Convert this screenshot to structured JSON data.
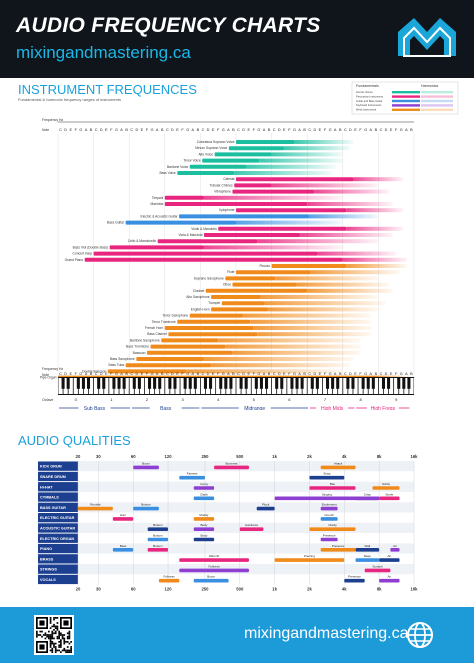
{
  "header": {
    "title": "AUDIO FREQUENCY CHARTS",
    "website": "mixingandmastering.ca"
  },
  "footer": {
    "website": "mixingandmastering.ca"
  },
  "colors": {
    "header_bg": "#10151c",
    "accent_blue": "#1aa1dc",
    "footer_bg": "#1d9bd8",
    "teal": "#1bbfa0",
    "pink": "#e9267f",
    "purple": "#8e3fd1",
    "blue": "#3a8fe0",
    "orange": "#f08a1a",
    "navy": "#1d3f8f"
  },
  "icons": [
    "logo-m-mountain",
    "qr-code",
    "globe-icon"
  ],
  "chart_data": [
    {
      "type": "bar",
      "title": "INSTRUMENT FREQUENCES",
      "subtitle": "Fundamental & harmonic frequency ranges of instruments",
      "legend": {
        "position": "top-right",
        "keys": [
          "Fundamentals",
          "Harmonics"
        ],
        "families": [
          "Human Voices",
          "Percussion Instruments",
          "Guitar and Bass Guitar",
          "Keyboard Instruments",
          "Wind Instruments"
        ]
      },
      "axis_label_frequency": "Frequency Hz",
      "axis_label_note": "Note",
      "note_letters": [
        "C",
        "D",
        "E",
        "F",
        "G",
        "A",
        "B"
      ],
      "octaves": [
        0,
        1,
        2,
        3,
        4,
        5,
        6,
        7,
        8,
        9
      ],
      "octave_label": "Octave",
      "bands": [
        {
          "name": "Sub Bass",
          "x0": 0.0,
          "x1": 2.05
        },
        {
          "name": "Bass",
          "x0": 2.05,
          "x1": 4.0
        },
        {
          "name": "Midrange",
          "x0": 4.0,
          "x1": 7.05
        },
        {
          "name": "High Mids",
          "x0": 7.05,
          "x1": 8.35
        },
        {
          "name": "High Freqs",
          "x0": 8.35,
          "x1": 9.9
        }
      ],
      "series_note": "Bar start and end values are in octave units (C0 = 0).",
      "instruments": [
        {
          "name": "Coloratura Soprano Voice",
          "family": "voice",
          "start": 5.0,
          "fund_end": 6.65,
          "harm_end": 8.3
        },
        {
          "name": "Mezzo Soprano Voice",
          "family": "voice",
          "start": 4.8,
          "fund_end": 6.35,
          "harm_end": 8.2
        },
        {
          "name": "Alto Voice",
          "family": "voice",
          "start": 4.4,
          "fund_end": 6.0,
          "harm_end": 8.0
        },
        {
          "name": "Tenor Voice",
          "family": "voice",
          "start": 4.05,
          "fund_end": 5.65,
          "harm_end": 8.0
        },
        {
          "name": "Baritone Voice",
          "family": "voice",
          "start": 3.7,
          "fund_end": 5.3,
          "harm_end": 7.8
        },
        {
          "name": "Bass Voice",
          "family": "voice",
          "start": 3.35,
          "fund_end": 4.95,
          "harm_end": 7.7
        },
        {
          "name": "Celesta",
          "family": "percussion",
          "start": 5.0,
          "fund_end": 8.3,
          "harm_end": 9.7
        },
        {
          "name": "Tubular Chimes",
          "family": "percussion",
          "start": 4.95,
          "fund_end": 6.0,
          "harm_end": 9.0
        },
        {
          "name": "Vibraphone",
          "family": "percussion",
          "start": 4.9,
          "fund_end": 7.2,
          "harm_end": 9.3
        },
        {
          "name": "Timpani",
          "family": "percussion",
          "start": 3.0,
          "fund_end": 4.1,
          "harm_end": 8.0
        },
        {
          "name": "Marimba",
          "family": "percussion",
          "start": 3.0,
          "fund_end": 7.0,
          "harm_end": 9.4
        },
        {
          "name": "Xylophone",
          "family": "percussion",
          "start": 5.0,
          "fund_end": 8.1,
          "harm_end": 9.7
        },
        {
          "name": "Electric & Acoustic Guitar",
          "family": "guitar",
          "start": 3.4,
          "fund_end": 7.05,
          "harm_end": 9.0
        },
        {
          "name": "Bass Guitar",
          "family": "guitar",
          "start": 1.9,
          "fund_end": 5.0,
          "harm_end": 8.0
        },
        {
          "name": "Violin & Mandolin",
          "family": "strings",
          "start": 4.5,
          "fund_end": 8.1,
          "harm_end": 9.7
        },
        {
          "name": "Viola & Mandola",
          "family": "strings",
          "start": 4.1,
          "fund_end": 6.8,
          "harm_end": 9.4
        },
        {
          "name": "Cello & Mandocello",
          "family": "strings",
          "start": 2.8,
          "fund_end": 5.6,
          "harm_end": 9.0
        },
        {
          "name": "Bass Viol (Double Bass)",
          "family": "strings",
          "start": 1.45,
          "fund_end": 4.1,
          "harm_end": 8.0
        },
        {
          "name": "Concert Harp",
          "family": "strings",
          "start": 1.0,
          "fund_end": 7.3,
          "harm_end": 9.5
        },
        {
          "name": "Grand Piano",
          "family": "strings",
          "start": 0.75,
          "fund_end": 8.0,
          "harm_end": 9.8
        },
        {
          "name": "Piccolo",
          "family": "wind",
          "start": 6.0,
          "fund_end": 8.1,
          "harm_end": 9.8
        },
        {
          "name": "Flute",
          "family": "wind",
          "start": 5.0,
          "fund_end": 7.1,
          "harm_end": 9.6
        },
        {
          "name": "Soprano Saxophone",
          "family": "wind",
          "start": 4.7,
          "fund_end": 6.1,
          "harm_end": 9.0
        },
        {
          "name": "Oboe",
          "family": "wind",
          "start": 4.9,
          "fund_end": 6.7,
          "harm_end": 9.3
        },
        {
          "name": "Clarinet",
          "family": "wind",
          "start": 4.15,
          "fund_end": 7.0,
          "harm_end": 9.4
        },
        {
          "name": "Alto Saxophone",
          "family": "wind",
          "start": 4.3,
          "fund_end": 5.7,
          "harm_end": 9.0
        },
        {
          "name": "Trumpet",
          "family": "wind",
          "start": 4.6,
          "fund_end": 5.8,
          "harm_end": 9.2
        },
        {
          "name": "English Horn",
          "family": "wind",
          "start": 4.3,
          "fund_end": 5.9,
          "harm_end": 9.0
        },
        {
          "name": "Tenor Saxophone",
          "family": "wind",
          "start": 3.7,
          "fund_end": 5.2,
          "harm_end": 8.8
        },
        {
          "name": "Tenor Trombone",
          "family": "wind",
          "start": 3.35,
          "fund_end": 5.4,
          "harm_end": 8.8
        },
        {
          "name": "French Horn",
          "family": "wind",
          "start": 3.0,
          "fund_end": 5.5,
          "harm_end": 8.8
        },
        {
          "name": "Bass Clarinet",
          "family": "wind",
          "start": 3.1,
          "fund_end": 5.6,
          "harm_end": 8.8
        },
        {
          "name": "Baritone Saxophone",
          "family": "wind",
          "start": 2.9,
          "fund_end": 4.5,
          "harm_end": 8.5
        },
        {
          "name": "Bass Trombone",
          "family": "wind",
          "start": 2.6,
          "fund_end": 4.7,
          "harm_end": 8.5
        },
        {
          "name": "Bassoon",
          "family": "wind",
          "start": 2.5,
          "fund_end": 4.9,
          "harm_end": 8.5
        },
        {
          "name": "Bass Saxophone",
          "family": "wind",
          "start": 2.2,
          "fund_end": 4.1,
          "harm_end": 8.3
        },
        {
          "name": "Bass Tuba",
          "family": "wind",
          "start": 1.9,
          "fund_end": 4.3,
          "harm_end": 8.2
        },
        {
          "name": "Double Bassoon",
          "family": "wind",
          "start": 1.4,
          "fund_end": 3.6,
          "harm_end": 8.0
        },
        {
          "name": "Pipe Organ",
          "family": "wind",
          "start": 0.0,
          "fund_end": 9.0,
          "harm_end": 9.9
        }
      ]
    },
    {
      "type": "table",
      "title": "AUDIO QUALITIES",
      "frequency_ticks": [
        "20",
        "30",
        "60",
        "120",
        "250",
        "500",
        "1k",
        "2k",
        "4k",
        "8k",
        "16k"
      ],
      "tick_values": [
        20,
        30,
        60,
        120,
        250,
        500,
        1000,
        2000,
        4000,
        8000,
        16000
      ],
      "x_scale": "log",
      "rows": [
        "KICK DRUM",
        "SNARE DRUM",
        "HI-HAT",
        "CYMBALS",
        "BASS GUITAR",
        "ELECTRIC GUITAR",
        "ACOUSTIC GUITAR",
        "ELECTRIC ORGAN",
        "PIANO",
        "BRASS",
        "STRINGS",
        "VOCALS"
      ],
      "qualities": [
        {
          "row": 0,
          "label": "Boom",
          "from": 60,
          "to": 100
        },
        {
          "row": 0,
          "label": "Boxiness",
          "from": 300,
          "to": 600
        },
        {
          "row": 0,
          "label": "Attack",
          "from": 2500,
          "to": 5000
        },
        {
          "row": 1,
          "label": "Fatness",
          "from": 150,
          "to": 250
        },
        {
          "row": 1,
          "label": "Snap",
          "from": 2000,
          "to": 4000
        },
        {
          "row": 2,
          "label": "Gong",
          "from": 200,
          "to": 300
        },
        {
          "row": 2,
          "label": "Bite",
          "from": 2000,
          "to": 5000
        },
        {
          "row": 2,
          "label": "Sizzle",
          "from": 7000,
          "to": 12000
        },
        {
          "row": 3,
          "label": "Clank",
          "from": 200,
          "to": 300
        },
        {
          "row": 3,
          "label": "Crisp",
          "from": 5000,
          "to": 8000
        },
        {
          "row": 3,
          "label": "Singing",
          "from": 1000,
          "to": 8000
        },
        {
          "row": 3,
          "label": "Sizzle",
          "from": 8000,
          "to": 12000
        },
        {
          "row": 4,
          "label": "Rumble",
          "from": 20,
          "to": 40
        },
        {
          "row": 4,
          "label": "Bottom",
          "from": 60,
          "to": 100
        },
        {
          "row": 4,
          "label": "Pluck",
          "from": 700,
          "to": 1000
        },
        {
          "row": 4,
          "label": "Excitement",
          "from": 2500,
          "to": 3500
        },
        {
          "row": 5,
          "label": "Hum",
          "from": 40,
          "to": 60
        },
        {
          "row": 5,
          "label": "Muddy",
          "from": 200,
          "to": 300
        },
        {
          "row": 5,
          "label": "Crunch",
          "from": 2500,
          "to": 3500
        },
        {
          "row": 6,
          "label": "Bottom",
          "from": 80,
          "to": 120
        },
        {
          "row": 6,
          "label": "Body",
          "from": 200,
          "to": 300
        },
        {
          "row": 6,
          "label": "Hardness",
          "from": 500,
          "to": 800
        },
        {
          "row": 6,
          "label": "Clarity",
          "from": 2000,
          "to": 5000
        },
        {
          "row": 7,
          "label": "Bottom",
          "from": 80,
          "to": 120
        },
        {
          "row": 7,
          "label": "Body",
          "from": 200,
          "to": 300
        },
        {
          "row": 7,
          "label": "Presence",
          "from": 2500,
          "to": 3500
        },
        {
          "row": 8,
          "label": "Bottom",
          "from": 80,
          "to": 120
        },
        {
          "row": 8,
          "label": "Presence",
          "from": 2500,
          "to": 5000
        },
        {
          "row": 8,
          "label": "Bass",
          "from": 40,
          "to": 60
        },
        {
          "row": 8,
          "label": "Wall",
          "from": 5000,
          "to": 8000
        },
        {
          "row": 8,
          "label": "Air",
          "from": 10000,
          "to": 12000
        },
        {
          "row": 9,
          "label": "Warmth",
          "from": 150,
          "to": 600
        },
        {
          "row": 9,
          "label": "Piercing",
          "from": 1000,
          "to": 4000
        },
        {
          "row": 9,
          "label": "Rasp",
          "from": 5000,
          "to": 8000
        },
        {
          "row": 9,
          "label": "Air",
          "from": 8000,
          "to": 12000
        },
        {
          "row": 10,
          "label": "Fullness",
          "from": 150,
          "to": 600
        },
        {
          "row": 10,
          "label": "Scratch",
          "from": 6000,
          "to": 10000
        },
        {
          "row": 11,
          "label": "Fullness",
          "from": 100,
          "to": 150
        },
        {
          "row": 11,
          "label": "Boom",
          "from": 200,
          "to": 400
        },
        {
          "row": 11,
          "label": "Presence",
          "from": 4000,
          "to": 6000
        },
        {
          "row": 11,
          "label": "Air",
          "from": 8000,
          "to": 12000
        }
      ]
    }
  ]
}
